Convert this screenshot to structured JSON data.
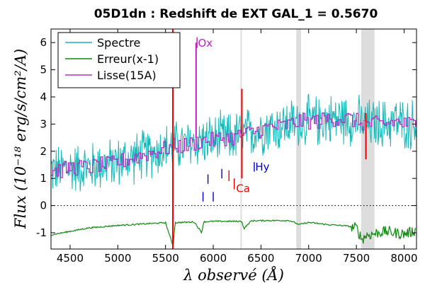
{
  "chart_data": {
    "type": "line",
    "title": "05D1dn : Redshift de EXT GAL_1 = 0.5670",
    "xlabel": "λ observé (Å)",
    "ylabel": "Flux (10⁻¹⁸ erg/s/cm²/A)",
    "xlim": [
      4300,
      8130
    ],
    "ylim": [
      -1.6,
      6.5
    ],
    "xticks": [
      4500,
      5000,
      5500,
      6000,
      6500,
      7000,
      7500,
      8000
    ],
    "yticks": [
      -1,
      0,
      1,
      2,
      3,
      4,
      5,
      6
    ],
    "grid": false,
    "legend_position": "top-left",
    "series": [
      {
        "name": "Spectre",
        "color": "#17b8b8",
        "description": "noisy observed spectrum",
        "x": [
          4300,
          4400,
          4500,
          4600,
          4700,
          4800,
          4900,
          5000,
          5100,
          5200,
          5300,
          5400,
          5500,
          5600,
          5700,
          5800,
          5900,
          6000,
          6100,
          6200,
          6300,
          6400,
          6500,
          6600,
          6700,
          6800,
          6900,
          7000,
          7100,
          7200,
          7300,
          7400,
          7500,
          7600,
          7700,
          7800,
          7900,
          8000,
          8130
        ],
        "values": [
          1.3,
          1.3,
          1.4,
          1.4,
          1.4,
          1.5,
          1.5,
          1.6,
          1.7,
          1.8,
          1.9,
          2.0,
          2.1,
          2.2,
          2.2,
          2.3,
          2.4,
          2.4,
          2.5,
          2.5,
          2.6,
          2.7,
          2.8,
          2.9,
          2.9,
          3.0,
          3.1,
          3.1,
          3.1,
          3.2,
          3.2,
          3.2,
          3.1,
          3.0,
          3.0,
          3.0,
          3.1,
          3.0,
          3.0
        ],
        "noise_amplitude": 1.0
      },
      {
        "name": "Erreur(x-1)",
        "color": "#118811",
        "x": [
          4300,
          4500,
          4700,
          5000,
          5300,
          5500,
          5580,
          5600,
          5800,
          5880,
          5900,
          6000,
          6300,
          6320,
          6400,
          6600,
          6800,
          6900,
          7000,
          7200,
          7400,
          7500,
          7560,
          7600,
          7800,
          8000,
          8130
        ],
        "values": [
          -1.08,
          -0.95,
          -0.82,
          -0.73,
          -0.67,
          -0.63,
          -1.5,
          -0.63,
          -0.6,
          -1.0,
          -0.6,
          -0.58,
          -0.58,
          -0.85,
          -0.56,
          -0.55,
          -0.55,
          -0.7,
          -0.62,
          -0.7,
          -0.75,
          -0.82,
          -1.25,
          -1.1,
          -0.95,
          -1.05,
          -0.9
        ]
      },
      {
        "name": "Lisse(15A)",
        "color": "#b030c8",
        "description": "15 Å boxcar-smoothed spectrum (step line)",
        "x": [
          4300,
          4400,
          4500,
          4600,
          4700,
          4800,
          4900,
          5000,
          5100,
          5200,
          5300,
          5400,
          5500,
          5600,
          5700,
          5800,
          5900,
          6000,
          6100,
          6200,
          6300,
          6400,
          6500,
          6600,
          6700,
          6800,
          6900,
          7000,
          7100,
          7200,
          7300,
          7400,
          7500,
          7600,
          7700,
          7800,
          7900,
          8000,
          8130
        ],
        "values": [
          1.3,
          1.3,
          1.4,
          1.4,
          1.4,
          1.5,
          1.5,
          1.6,
          1.7,
          1.8,
          1.9,
          2.0,
          2.1,
          2.2,
          2.2,
          2.3,
          2.4,
          2.4,
          2.5,
          2.5,
          2.6,
          2.7,
          2.8,
          2.9,
          2.9,
          3.0,
          3.1,
          3.1,
          3.1,
          3.2,
          3.2,
          3.2,
          3.1,
          3.0,
          3.0,
          3.0,
          3.1,
          3.0,
          3.0
        ],
        "noise_amplitude": 0.3
      }
    ],
    "shaded_bands": [
      {
        "x0": 6285,
        "x1": 6300,
        "color": "#dddddd"
      },
      {
        "x0": 6870,
        "x1": 6920,
        "color": "#dddddd"
      },
      {
        "x0": 7550,
        "x1": 7690,
        "color": "#dddddd"
      }
    ],
    "emission_spikes": [
      {
        "x": 5577,
        "y0": -1.6,
        "y1": 6.5,
        "color": "#ee0000"
      },
      {
        "x": 5820,
        "y0": 2.5,
        "y1": 6.0,
        "color": "#c020c0"
      },
      {
        "x": 6300,
        "y0": 1.0,
        "y1": 4.3,
        "color": "#ee0000"
      },
      {
        "x": 7600,
        "y0": 1.7,
        "y1": 3.4,
        "color": "#ee0000"
      }
    ],
    "line_markers": [
      {
        "x": 5830,
        "ymin": 5.8,
        "ymax": 6.2,
        "color": "#c020c0"
      },
      {
        "x": 5893,
        "ymin": 0.15,
        "ymax": 0.5,
        "color": "#0000cc"
      },
      {
        "x": 5945,
        "ymin": 0.8,
        "ymax": 1.15,
        "color": "#0000cc"
      },
      {
        "x": 6000,
        "ymin": 0.15,
        "ymax": 0.5,
        "color": "#0000cc"
      },
      {
        "x": 6090,
        "ymin": 1.0,
        "ymax": 1.35,
        "color": "#0000cc"
      },
      {
        "x": 6165,
        "ymin": 0.9,
        "ymax": 1.3,
        "color": "#ee0000"
      },
      {
        "x": 6220,
        "ymin": 0.6,
        "ymax": 1.0,
        "color": "#ee0000"
      },
      {
        "x": 6430,
        "ymin": 1.25,
        "ymax": 1.6,
        "color": "#0000cc"
      }
    ],
    "annotations": [
      {
        "text": "Ox",
        "x": 5840,
        "y": 6.0,
        "color": "#c020c0"
      },
      {
        "text": "Ca",
        "x": 6240,
        "y": 0.65,
        "color": "#ee0000"
      },
      {
        "text": "Hy",
        "x": 6440,
        "y": 1.45,
        "color": "#0000cc"
      }
    ],
    "zero_line": {
      "y": 0,
      "style": "dotted",
      "color": "#000000"
    }
  }
}
